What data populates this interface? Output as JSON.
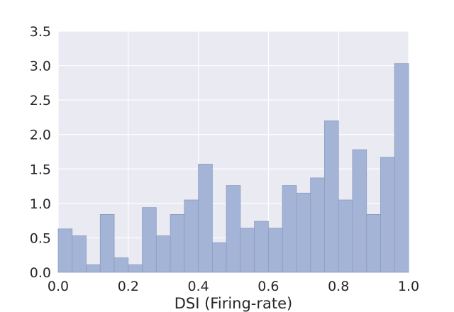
{
  "chart_data": {
    "type": "bar",
    "xlabel": "DSI (Firing-rate)",
    "ylabel": "",
    "title": "",
    "xlim": [
      0.0,
      1.0
    ],
    "ylim": [
      0.0,
      3.5
    ],
    "bin_width": 0.04,
    "bin_edges": [
      0.0,
      0.04,
      0.08,
      0.12,
      0.16,
      0.2,
      0.24,
      0.28,
      0.32,
      0.36,
      0.4,
      0.44,
      0.48,
      0.52,
      0.56,
      0.6,
      0.64,
      0.68,
      0.72,
      0.76,
      0.8,
      0.84,
      0.88,
      0.92,
      0.96,
      1.0
    ],
    "values": [
      0.63,
      0.53,
      0.11,
      0.84,
      0.21,
      0.11,
      0.94,
      0.53,
      0.84,
      1.05,
      1.57,
      0.43,
      1.26,
      0.64,
      0.74,
      0.64,
      1.26,
      1.15,
      1.37,
      2.2,
      1.05,
      1.78,
      0.84,
      1.67,
      3.03
    ],
    "x_ticks": [
      0.0,
      0.2,
      0.4,
      0.6,
      0.8,
      1.0
    ],
    "x_tick_labels": [
      "0.0",
      "0.2",
      "0.4",
      "0.6",
      "0.8",
      "1.0"
    ],
    "y_ticks": [
      0.0,
      0.5,
      1.0,
      1.5,
      2.0,
      2.5,
      3.0,
      3.5
    ],
    "y_tick_labels": [
      "0.0",
      "0.5",
      "1.0",
      "1.5",
      "2.0",
      "2.5",
      "3.0",
      "3.5"
    ],
    "grid": true,
    "colors": {
      "background": "#eaeaf2",
      "grid": "#ffffff",
      "bar_fill": "#a4b4d6",
      "bar_edge": "#8c9cc0",
      "text": "#262626"
    }
  }
}
